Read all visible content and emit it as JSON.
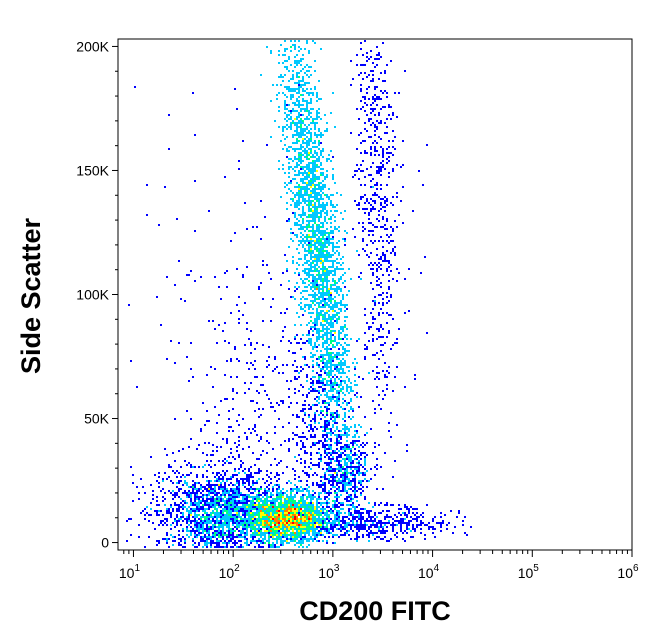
{
  "chart_data": {
    "type": "scatter",
    "style": "flow-cytometry pseudocolor density dot plot",
    "xlabel": "CD200 FITC",
    "ylabel": "Side Scatter",
    "x_scale": "log",
    "xlim": [
      7,
      1000000
    ],
    "ylim": [
      -3000,
      203000
    ],
    "x_ticks": [
      {
        "base": "10",
        "exp": "1",
        "value": 10
      },
      {
        "base": "10",
        "exp": "2",
        "value": 100
      },
      {
        "base": "10",
        "exp": "3",
        "value": 1000
      },
      {
        "base": "10",
        "exp": "4",
        "value": 10000
      },
      {
        "base": "10",
        "exp": "5",
        "value": 100000
      },
      {
        "base": "10",
        "exp": "6",
        "value": 1000000
      }
    ],
    "y_ticks": [
      {
        "label": "0",
        "value": 0
      },
      {
        "label": "50K",
        "value": 50000
      },
      {
        "label": "100K",
        "value": 100000
      },
      {
        "label": "150K",
        "value": 150000
      },
      {
        "label": "200K",
        "value": 200000
      }
    ],
    "density_colormap": [
      "#0000ff",
      "#00c8ff",
      "#00ff80",
      "#ffff00",
      "#ff8000",
      "#ff0000"
    ],
    "populations": [
      {
        "name": "low-SSC CD200-negative cluster",
        "x_center": 150,
        "y_center": 18000,
        "density": "medium"
      },
      {
        "name": "low-SSC CD200-dim cluster",
        "x_center": 400,
        "y_center": 11000,
        "density": "high"
      },
      {
        "name": "high-SSC CD200-positive band",
        "x_center": 800,
        "y_center": 115000,
        "density": "high"
      },
      {
        "name": "CD200-bright granular band",
        "x_center": 3000,
        "y_center": 140000,
        "density": "low"
      },
      {
        "name": "intermediate-SSC CD200-bright cluster",
        "x_center": 1500,
        "y_center": 30000,
        "density": "medium"
      }
    ]
  }
}
